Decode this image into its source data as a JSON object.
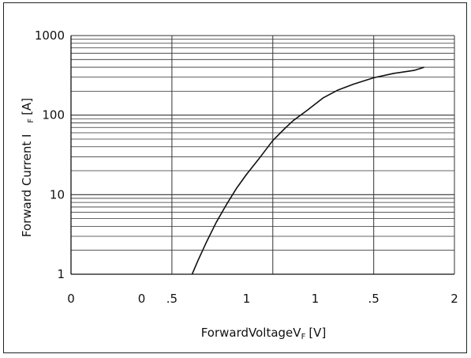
{
  "chart_data": {
    "type": "line",
    "xlabel": "ForwardVoltageV",
    "xlabel_sub": "F",
    "xlabel_unit": "[V]",
    "ylabel": "Forward Current I",
    "ylabel_sub": "F",
    "ylabel_unit": "[A]",
    "y_scale": "log",
    "ylim": [
      1,
      1000
    ],
    "xlim": [
      0,
      1.9
    ],
    "x_tick_positions": [
      0,
      0.5,
      1.0,
      1.5,
      1.9
    ],
    "x_tick_labels": [
      "0",
      "0",
      ".5",
      "1",
      "1",
      ".5",
      "2"
    ],
    "x_tick_label_positions": [
      0,
      0.35,
      0.5,
      0.87,
      1.21,
      1.5,
      1.9
    ],
    "y_tick_values": [
      1,
      10,
      100,
      1000
    ],
    "y_tick_labels": [
      "1",
      "10",
      "100",
      "1000"
    ],
    "grid": true,
    "series": [
      {
        "x": [
          0.6,
          0.63,
          0.67,
          0.72,
          0.77,
          0.82,
          0.87,
          0.93,
          1.0,
          1.06,
          1.1,
          1.17,
          1.25,
          1.32,
          1.4,
          1.5,
          1.6,
          1.7,
          1.75
        ],
        "y": [
          1,
          1.5,
          2.5,
          4.5,
          7.5,
          12,
          18,
          28,
          48,
          68,
          85,
          115,
          165,
          205,
          245,
          295,
          335,
          365,
          400
        ]
      }
    ]
  }
}
